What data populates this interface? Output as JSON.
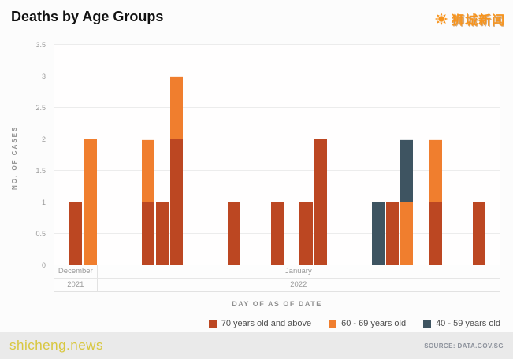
{
  "header": {
    "title": "Deaths by Age Groups",
    "logo_text": "狮城新闻"
  },
  "chart_data": {
    "type": "bar",
    "stacked": true,
    "title": "Deaths by Age Groups",
    "xlabel": "DAY OF AS OF DATE",
    "ylabel": "NO. OF CASES",
    "ylim": [
      0,
      3.5
    ],
    "yticks": [
      0,
      0.5,
      1,
      1.5,
      2,
      2.5,
      3,
      3.5
    ],
    "grid": "horizontal",
    "legend_position": "bottom-right",
    "total_slots": 31,
    "months": [
      {
        "name": "December",
        "year": "2021",
        "span": 3
      },
      {
        "name": "January",
        "year": "2022",
        "span": 28
      }
    ],
    "series": [
      {
        "key": "70+",
        "name": "70 years old and above",
        "color": "#bc4722"
      },
      {
        "key": "60-69",
        "name": "60 - 69 years old",
        "color": "#f07e2e"
      },
      {
        "key": "40-59",
        "name": "40 - 59 years old",
        "color": "#3e5461"
      }
    ],
    "bars": [
      {
        "slot": 1,
        "segments": [
          {
            "series": "70+",
            "value": 1
          }
        ]
      },
      {
        "slot": 2,
        "segments": [
          {
            "series": "60-69",
            "value": 2
          }
        ]
      },
      {
        "slot": 6,
        "segments": [
          {
            "series": "70+",
            "value": 1
          },
          {
            "series": "60-69",
            "value": 1
          }
        ]
      },
      {
        "slot": 7,
        "segments": [
          {
            "series": "70+",
            "value": 1
          }
        ]
      },
      {
        "slot": 8,
        "segments": [
          {
            "series": "70+",
            "value": 2
          },
          {
            "series": "60-69",
            "value": 1
          }
        ]
      },
      {
        "slot": 12,
        "segments": [
          {
            "series": "70+",
            "value": 1
          }
        ]
      },
      {
        "slot": 15,
        "segments": [
          {
            "series": "70+",
            "value": 1
          }
        ]
      },
      {
        "slot": 17,
        "segments": [
          {
            "series": "70+",
            "value": 1
          }
        ]
      },
      {
        "slot": 18,
        "segments": [
          {
            "series": "70+",
            "value": 2
          }
        ]
      },
      {
        "slot": 22,
        "segments": [
          {
            "series": "40-59",
            "value": 1
          }
        ]
      },
      {
        "slot": 23,
        "segments": [
          {
            "series": "70+",
            "value": 1
          }
        ]
      },
      {
        "slot": 24,
        "segments": [
          {
            "series": "60-69",
            "value": 1
          },
          {
            "series": "40-59",
            "value": 1
          }
        ]
      },
      {
        "slot": 26,
        "segments": [
          {
            "series": "70+",
            "value": 1
          },
          {
            "series": "60-69",
            "value": 1
          }
        ]
      },
      {
        "slot": 29,
        "segments": [
          {
            "series": "70+",
            "value": 1
          }
        ]
      }
    ]
  },
  "footer": {
    "watermark": "shicheng.news",
    "source": "SOURCE: DATA.GOV.SG"
  }
}
